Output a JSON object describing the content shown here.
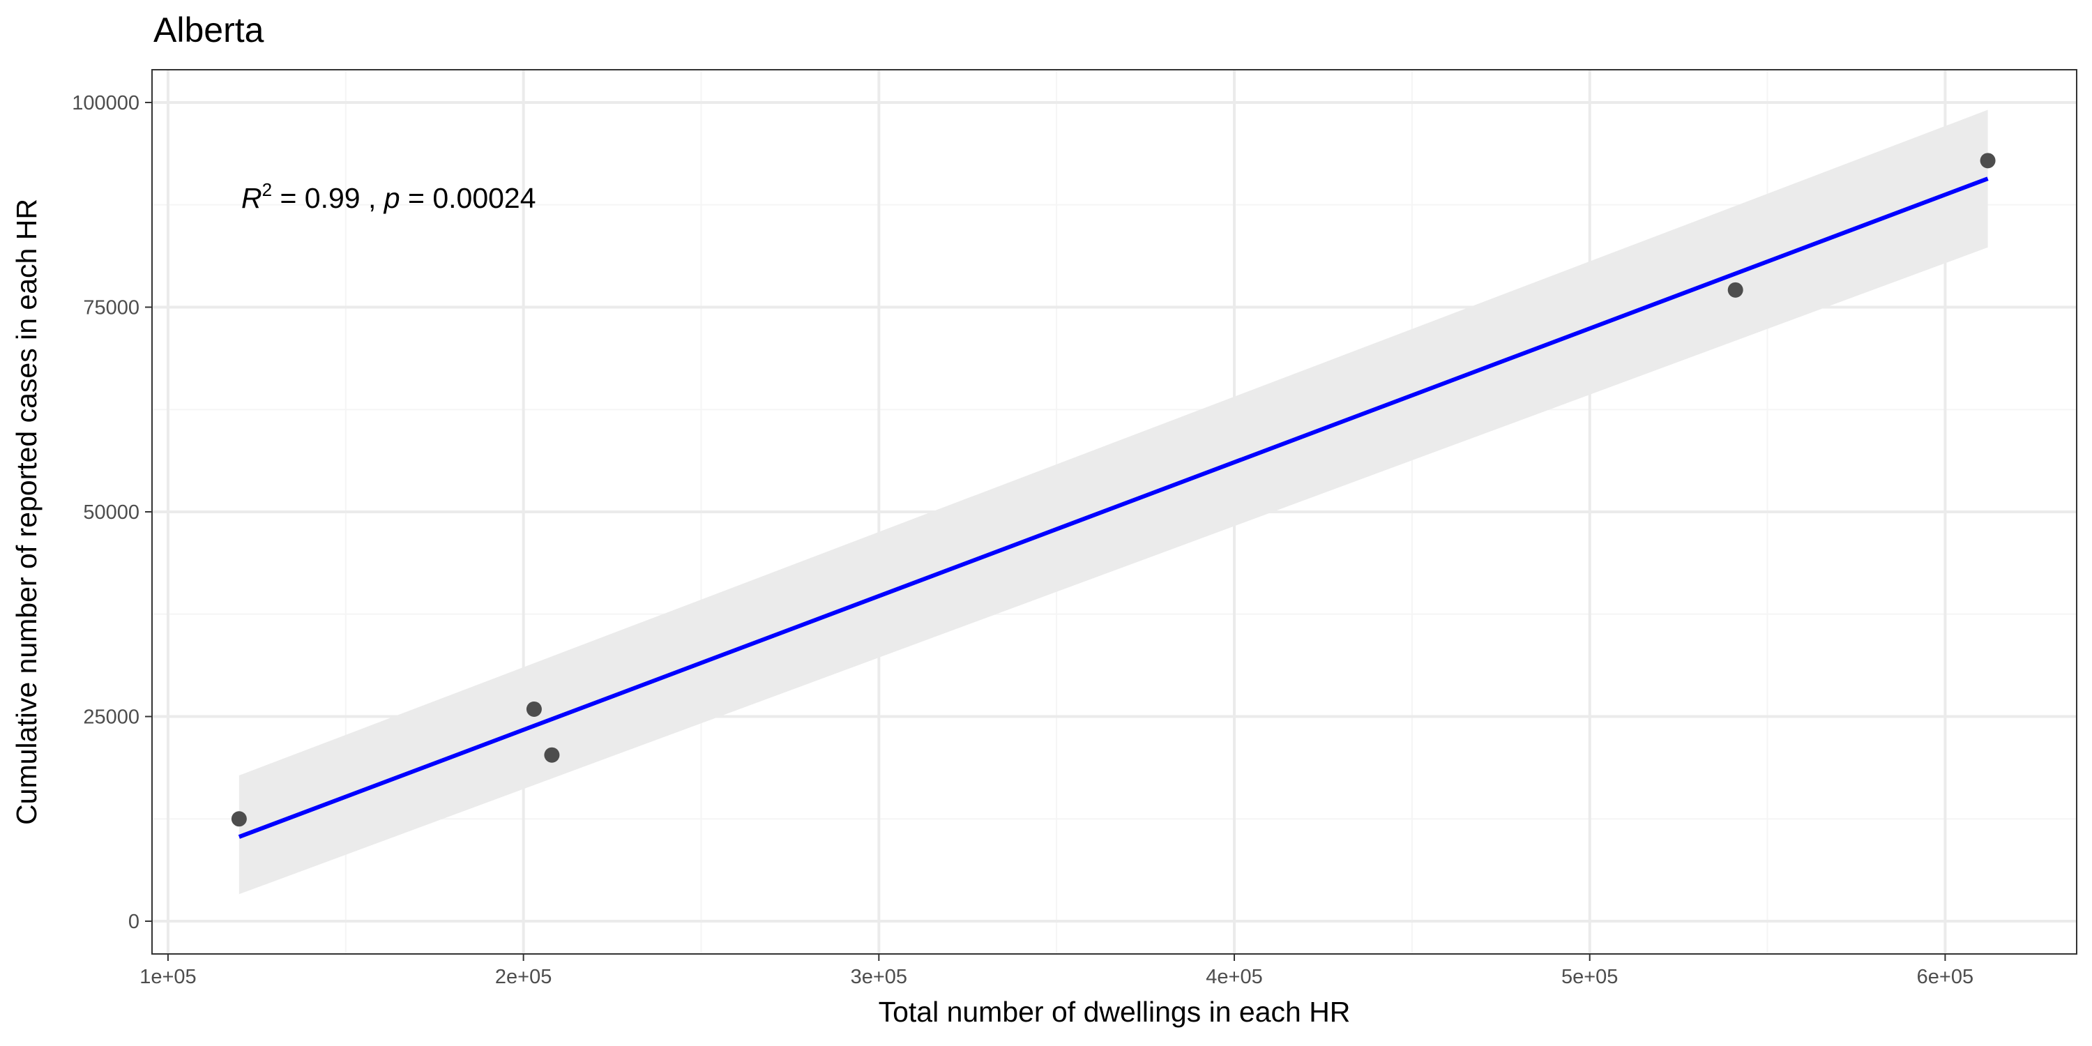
{
  "chart_data": {
    "type": "scatter",
    "title": "Alberta",
    "xlabel": "Total number of dwellings in each HR",
    "ylabel": "Cumulative number of reported cases in each HR",
    "xlim": [
      95500,
      637000
    ],
    "ylim": [
      -4000,
      104000
    ],
    "x_ticks": [
      100000,
      200000,
      300000,
      400000,
      500000,
      600000
    ],
    "x_tick_labels": [
      "1e+05",
      "2e+05",
      "3e+05",
      "4e+05",
      "5e+05",
      "6e+05"
    ],
    "x_minor_ticks": [
      150000,
      250000,
      350000,
      450000,
      550000
    ],
    "y_ticks": [
      0,
      25000,
      50000,
      75000,
      100000
    ],
    "y_tick_labels": [
      "0",
      "25000",
      "50000",
      "75000",
      "100000"
    ],
    "y_minor_ticks": [
      12500,
      37500,
      62500,
      87500
    ],
    "grid": true,
    "points": {
      "x": [
        120000,
        203000,
        208000,
        541000,
        612000
      ],
      "y": [
        12500,
        25900,
        20300,
        77100,
        92900
      ]
    },
    "fit_line": {
      "x": [
        120000,
        612000
      ],
      "y": [
        10300,
        90700
      ],
      "color": "#0000ff"
    },
    "confidence_band": {
      "x": [
        120000,
        612000
      ],
      "lower": [
        3300,
        82300
      ],
      "upper": [
        17800,
        99100
      ],
      "color": "#ebebeb"
    },
    "annotation": {
      "r_symbol": "R",
      "r_exponent": "2",
      "r_value": " = 0.99 , ",
      "p_symbol": "p",
      "p_value": " = 0.00024"
    },
    "colors": {
      "points": "#4d4d4d",
      "grid_major": "#ebebeb",
      "grid_minor": "#f5f5f5",
      "panel_border": "#333333"
    }
  }
}
